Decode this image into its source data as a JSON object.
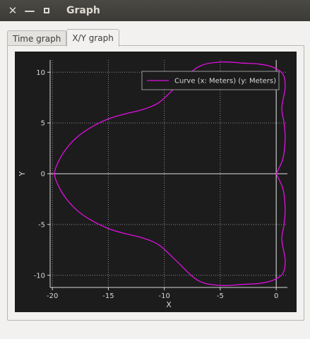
{
  "window": {
    "title": "Graph"
  },
  "tabs": [
    {
      "label": "Time graph",
      "active": false
    },
    {
      "label": "X/Y graph",
      "active": true
    }
  ],
  "chart_data": {
    "type": "line",
    "xlabel": "X",
    "ylabel": "Y",
    "xlim": [
      -20.2,
      1.0
    ],
    "ylim": [
      -11.2,
      11.2
    ],
    "xticks": [
      -20,
      -15,
      -10,
      -5,
      0
    ],
    "yticks": [
      -10,
      -5,
      0,
      5,
      10
    ],
    "grid": true,
    "legend_position": "top-right",
    "series": [
      {
        "name": "Curve (x: Meters) (y: Meters)",
        "color": "#e010e0",
        "x": [
          0,
          0.6,
          0.8,
          0.7,
          0.5,
          0.8,
          0.6,
          -0.3,
          -1.5,
          -3.0,
          -5.0,
          -7.0,
          -9.0,
          -10.5,
          -12.0,
          -13.5,
          -15.0,
          -16.5,
          -17.8,
          -18.8,
          -19.5,
          -19.8,
          -19.5,
          -18.8,
          -17.8,
          -16.5,
          -15.0,
          -13.5,
          -12.0,
          -10.5,
          -9.0,
          -7.0,
          -5.0,
          -3.0,
          -1.5,
          -0.3,
          0.6,
          0.8,
          0.5,
          0.7,
          0.8,
          0.6,
          0
        ],
        "y": [
          0,
          1.5,
          3.5,
          5.0,
          6.5,
          8.5,
          9.8,
          10.5,
          10.8,
          10.9,
          11.0,
          10.5,
          8.5,
          7.0,
          6.3,
          5.9,
          5.4,
          4.6,
          3.6,
          2.4,
          1.1,
          0,
          -1.1,
          -2.4,
          -3.6,
          -4.6,
          -5.4,
          -5.9,
          -6.3,
          -7.0,
          -8.5,
          -10.5,
          -11.0,
          -10.9,
          -10.8,
          -10.5,
          -9.8,
          -8.5,
          -6.5,
          -5.0,
          -3.5,
          -1.5,
          0
        ]
      }
    ]
  },
  "colors": {
    "plot_bg": "#1c1c1c",
    "axis": "#d8d8d8",
    "grid": "#8a8a8a",
    "curve": "#e010e0"
  }
}
